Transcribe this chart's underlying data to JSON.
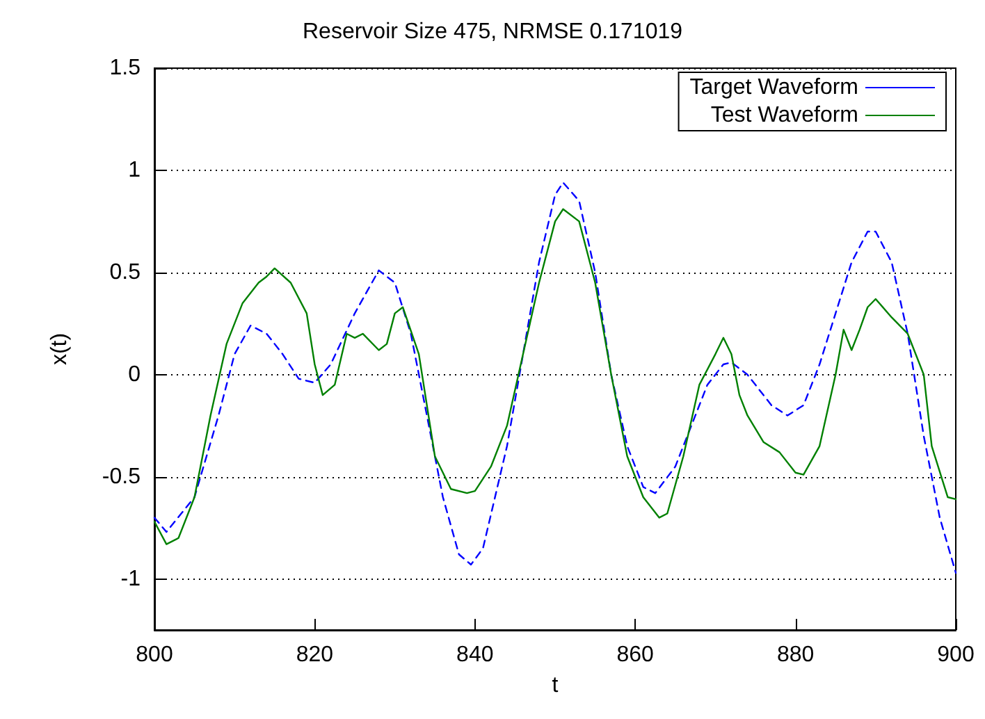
{
  "chart_data": {
    "type": "line",
    "title": "Reservoir Size 475, NRMSE 0.171019",
    "xlabel": "t",
    "ylabel": "x(t)",
    "xlim": [
      800,
      900
    ],
    "xticks": [
      800,
      820,
      840,
      860,
      880,
      900
    ],
    "ylim": [
      -1.25,
      1.5
    ],
    "yticks": [
      -1,
      -0.5,
      0,
      0.5,
      1,
      1.5
    ],
    "grid": "y",
    "legend": "top right",
    "marker": "none",
    "series": [
      {
        "name": "Target Waveform",
        "color": "#0000ff",
        "line_style": "dashed",
        "x": [
          800,
          801.5,
          805,
          808,
          810,
          812,
          814,
          816,
          818,
          820,
          822,
          825,
          828,
          830,
          832,
          834,
          836,
          838,
          839.5,
          841,
          844,
          846,
          848,
          850,
          851,
          853,
          855,
          857,
          859,
          861,
          862.5,
          865,
          867,
          869,
          871,
          872,
          874,
          877,
          879,
          881,
          883,
          885,
          887,
          889,
          890,
          892,
          894,
          896,
          898,
          900
        ],
        "values": [
          -0.7,
          -0.77,
          -0.6,
          -0.2,
          0.1,
          0.24,
          0.2,
          0.1,
          -0.02,
          -0.04,
          0.05,
          0.3,
          0.51,
          0.45,
          0.2,
          -0.2,
          -0.6,
          -0.88,
          -0.93,
          -0.85,
          -0.35,
          0.1,
          0.55,
          0.88,
          0.94,
          0.85,
          0.5,
          0.0,
          -0.35,
          -0.55,
          -0.58,
          -0.45,
          -0.25,
          -0.05,
          0.05,
          0.06,
          0.0,
          -0.15,
          -0.2,
          -0.15,
          0.05,
          0.3,
          0.55,
          0.7,
          0.7,
          0.55,
          0.2,
          -0.3,
          -0.7,
          -0.97
        ]
      },
      {
        "name": "Test Waveform",
        "color": "#008000",
        "line_style": "solid",
        "x": [
          800,
          801.5,
          803,
          805,
          807,
          809,
          811,
          813,
          814,
          815,
          817,
          819,
          820,
          821,
          822.5,
          824,
          825,
          826,
          828,
          829,
          830,
          831,
          833,
          835,
          837,
          839,
          840,
          842,
          844,
          846,
          848,
          850,
          851,
          853,
          855,
          857,
          859,
          861,
          863,
          864,
          866,
          868,
          870,
          871,
          872,
          873,
          874,
          876,
          878,
          880,
          881,
          883,
          885,
          886,
          887,
          888,
          889,
          890,
          892,
          894,
          896,
          897,
          899,
          900
        ],
        "values": [
          -0.72,
          -0.83,
          -0.8,
          -0.6,
          -0.2,
          0.15,
          0.35,
          0.45,
          0.48,
          0.52,
          0.45,
          0.3,
          0.05,
          -0.1,
          -0.05,
          0.2,
          0.18,
          0.2,
          0.12,
          0.15,
          0.3,
          0.33,
          0.1,
          -0.4,
          -0.56,
          -0.58,
          -0.57,
          -0.45,
          -0.25,
          0.1,
          0.45,
          0.75,
          0.81,
          0.75,
          0.45,
          0.0,
          -0.4,
          -0.6,
          -0.7,
          -0.68,
          -0.4,
          -0.05,
          0.1,
          0.18,
          0.1,
          -0.1,
          -0.2,
          -0.33,
          -0.38,
          -0.48,
          -0.49,
          -0.35,
          0.0,
          0.22,
          0.12,
          0.22,
          0.33,
          0.37,
          0.28,
          0.2,
          0.0,
          -0.35,
          -0.6,
          -0.61
        ]
      }
    ]
  }
}
